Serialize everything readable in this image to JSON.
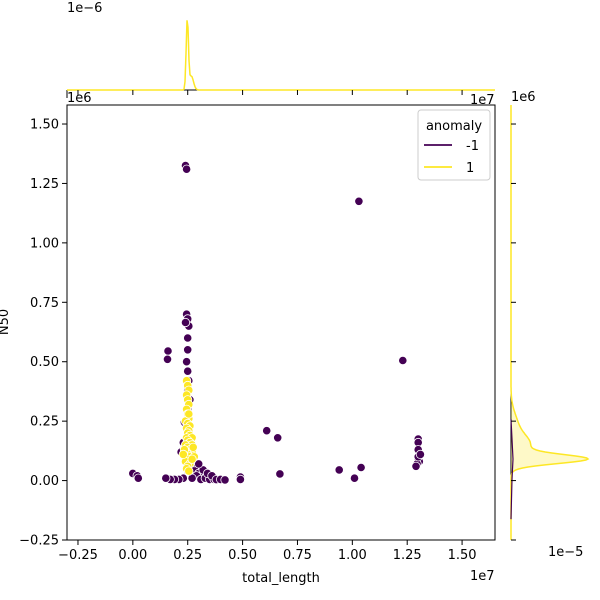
{
  "chart_data": {
    "type": "scatter",
    "xlabel": "total_length",
    "ylabel": "N50",
    "x_multiplier_text": "1e7",
    "y_multiplier_text": "1e6",
    "top_marginal_multiplier_text": "1e−6",
    "right_marginal_multiplier_text": "1e6",
    "right_marginal_x_multiplier_text": "1e−5",
    "xlim": [
      -0.3,
      1.65
    ],
    "ylim": [
      -0.25,
      1.58
    ],
    "xticks": [
      -0.25,
      0.0,
      0.25,
      0.5,
      0.75,
      1.0,
      1.25,
      1.5
    ],
    "xtick_labels": [
      "−0.25",
      "0.00",
      "0.25",
      "0.50",
      "0.75",
      "1.00",
      "1.25",
      "1.50"
    ],
    "yticks": [
      -0.25,
      0.0,
      0.25,
      0.5,
      0.75,
      1.0,
      1.25,
      1.5
    ],
    "ytick_labels": [
      "−0.25",
      "0.00",
      "0.25",
      "0.50",
      "0.75",
      "1.00",
      "1.25",
      "1.50"
    ],
    "grid": false,
    "legend": {
      "title": "anomaly",
      "placement": "top-right",
      "entries": [
        {
          "label": "-1",
          "color": "#440154"
        },
        {
          "label": "1",
          "color": "#fde725"
        }
      ]
    },
    "series": [
      {
        "name": "-1",
        "color": "#440154",
        "points": [
          [
            0.24,
            1.325
          ],
          [
            0.245,
            1.31
          ],
          [
            1.03,
            1.175
          ],
          [
            1.23,
            0.505
          ],
          [
            0.16,
            0.545
          ],
          [
            0.158,
            0.51
          ],
          [
            0.245,
            0.7
          ],
          [
            0.25,
            0.68
          ],
          [
            0.255,
            0.65
          ],
          [
            0.24,
            0.665
          ],
          [
            0.25,
            0.6
          ],
          [
            0.25,
            0.55
          ],
          [
            0.245,
            0.5
          ],
          [
            0.25,
            0.46
          ],
          [
            0.255,
            0.42
          ],
          [
            0.25,
            0.38
          ],
          [
            0.26,
            0.34
          ],
          [
            0.25,
            0.3
          ],
          [
            0.255,
            0.26
          ],
          [
            0.245,
            0.22
          ],
          [
            0.235,
            0.245
          ],
          [
            0.26,
            0.19
          ],
          [
            0.25,
            0.16
          ],
          [
            0.255,
            0.13
          ],
          [
            0.24,
            0.1
          ],
          [
            0.26,
            0.08
          ],
          [
            0.27,
            0.06
          ],
          [
            0.25,
            0.04
          ],
          [
            0.28,
            0.05
          ],
          [
            0.3,
            0.03
          ],
          [
            0.32,
            0.045
          ],
          [
            0.29,
            0.02
          ],
          [
            0.27,
            0.01
          ],
          [
            0.31,
            0.005
          ],
          [
            0.33,
            0.01
          ],
          [
            0.35,
            0.005
          ],
          [
            0.37,
            0.005
          ],
          [
            0.34,
            0.03
          ],
          [
            0.36,
            0.02
          ],
          [
            0.38,
            0.004
          ],
          [
            0.4,
            0.005
          ],
          [
            0.42,
            0.003
          ],
          [
            0.23,
            0.01
          ],
          [
            0.21,
            0.005
          ],
          [
            0.19,
            0.005
          ],
          [
            0.17,
            0.005
          ],
          [
            0.15,
            0.01
          ],
          [
            0.28,
            0.075
          ],
          [
            0.3,
            0.07
          ],
          [
            0.26,
            0.09
          ],
          [
            0.22,
            0.12
          ],
          [
            0.23,
            0.16
          ],
          [
            0.0,
            0.03
          ],
          [
            0.02,
            0.02
          ],
          [
            0.025,
            0.01
          ],
          [
            0.49,
            0.015
          ],
          [
            0.49,
            0.005
          ],
          [
            0.61,
            0.21
          ],
          [
            0.66,
            0.18
          ],
          [
            0.67,
            0.028
          ],
          [
            0.94,
            0.045
          ],
          [
            1.01,
            0.01
          ],
          [
            1.04,
            0.055
          ],
          [
            1.3,
            0.175
          ],
          [
            1.3,
            0.16
          ],
          [
            1.3,
            0.13
          ],
          [
            1.3,
            0.09
          ],
          [
            1.305,
            0.08
          ],
          [
            1.295,
            0.07
          ],
          [
            1.29,
            0.06
          ],
          [
            1.3,
            0.1
          ],
          [
            1.31,
            0.11
          ]
        ]
      },
      {
        "name": "1",
        "color": "#fde725",
        "points": [
          [
            0.245,
            0.42
          ],
          [
            0.25,
            0.4
          ],
          [
            0.255,
            0.38
          ],
          [
            0.245,
            0.36
          ],
          [
            0.25,
            0.34
          ],
          [
            0.255,
            0.32
          ],
          [
            0.245,
            0.3
          ],
          [
            0.25,
            0.28
          ],
          [
            0.255,
            0.26
          ],
          [
            0.24,
            0.25
          ],
          [
            0.25,
            0.24
          ],
          [
            0.26,
            0.23
          ],
          [
            0.245,
            0.22
          ],
          [
            0.255,
            0.21
          ],
          [
            0.25,
            0.2
          ],
          [
            0.26,
            0.19
          ],
          [
            0.245,
            0.18
          ],
          [
            0.27,
            0.18
          ],
          [
            0.25,
            0.17
          ],
          [
            0.26,
            0.16
          ],
          [
            0.24,
            0.15
          ],
          [
            0.27,
            0.15
          ],
          [
            0.25,
            0.14
          ],
          [
            0.26,
            0.13
          ],
          [
            0.245,
            0.12
          ],
          [
            0.27,
            0.12
          ],
          [
            0.25,
            0.11
          ],
          [
            0.26,
            0.1
          ],
          [
            0.28,
            0.1
          ],
          [
            0.25,
            0.09
          ],
          [
            0.24,
            0.08
          ],
          [
            0.26,
            0.07
          ],
          [
            0.25,
            0.06
          ],
          [
            0.245,
            0.05
          ],
          [
            0.255,
            0.04
          ],
          [
            0.27,
            0.09
          ],
          [
            0.235,
            0.13
          ],
          [
            0.23,
            0.11
          ],
          [
            0.275,
            0.14
          ],
          [
            0.255,
            0.28
          ]
        ]
      }
    ],
    "marginal_top": {
      "series": "1",
      "description_peak_x": 0.248
    },
    "marginal_right": {
      "series": "1",
      "description_peak_y": 0.09
    }
  }
}
